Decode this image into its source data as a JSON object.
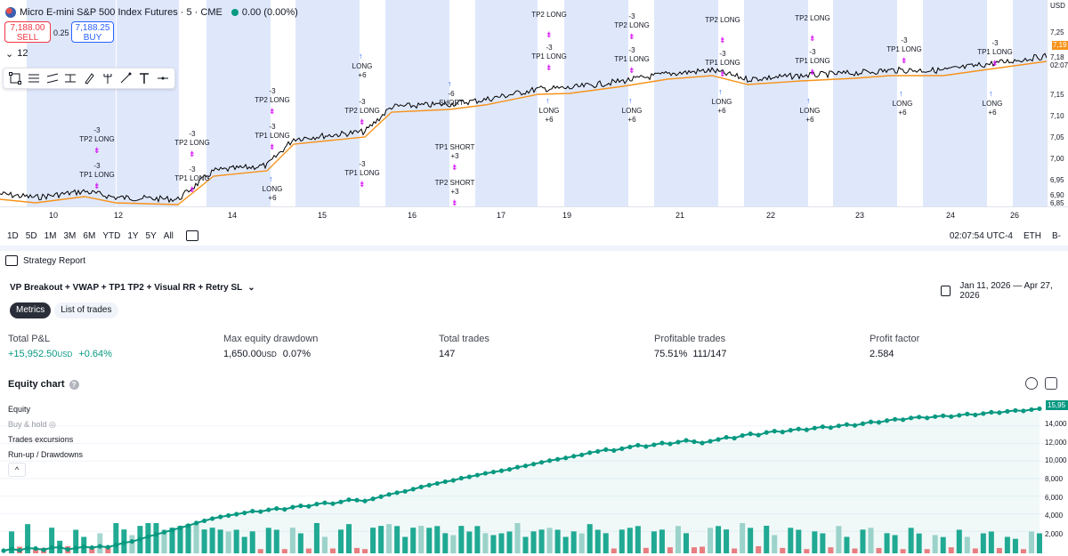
{
  "chart": {
    "symbol_title": "Micro E-mini S&P 500 Index Futures · 5 · CME",
    "change": "0.00 (0.00%)",
    "sell_price": "7,188.00",
    "sell_label": "SELL",
    "spread": "0.25",
    "buy_price": "7,188.25",
    "buy_label": "BUY",
    "interval_value": "12",
    "y_axis_unit": "USD",
    "y_ticks": [
      "7,25",
      "7,19",
      "7,18",
      "02:07",
      "7,15",
      "7,10",
      "7,05",
      "7,00",
      "6,95",
      "6,90",
      "6,85"
    ],
    "current_price_tag": "7,19",
    "x_ticks": [
      "10",
      "12",
      "14",
      "15",
      "16",
      "17",
      "19",
      "21",
      "22",
      "23",
      "24",
      "26"
    ],
    "colors": {
      "session_band": "#dfe8fb",
      "price_line": "#000000",
      "vwap_line": "#f7931a",
      "accent": "#2962ff",
      "tp_marker": "#d500f9"
    },
    "trade_labels": [
      {
        "text": "-3\nTP2 LONG",
        "kind": "tp"
      },
      {
        "text": "-3\nTP1 LONG",
        "kind": "tp"
      },
      {
        "text": "-3\nTP2 LONG",
        "kind": "tp"
      },
      {
        "text": "-3\nTP1 LONG",
        "kind": "tp"
      },
      {
        "text": "LONG\n+6",
        "kind": "entry"
      },
      {
        "text": "-3\nTP2 LONG",
        "kind": "tp"
      },
      {
        "text": "-3\nTP1 LONG",
        "kind": "tp"
      },
      {
        "text": "LONG\n+6",
        "kind": "entry"
      },
      {
        "text": "-3\nTP2 LONG",
        "kind": "tp"
      },
      {
        "text": "-3\nTP1 LONG",
        "kind": "tp"
      },
      {
        "text": "LONG\n+6",
        "kind": "entry"
      },
      {
        "text": "-6\nSHORT",
        "kind": "entry"
      },
      {
        "text": "TP1 SHORT\n+3",
        "kind": "tp"
      },
      {
        "text": "TP2 SHORT\n+3",
        "kind": "tp"
      },
      {
        "text": "TP2 LONG",
        "kind": "tp"
      },
      {
        "text": "-3\nTP1 LONG",
        "kind": "tp"
      },
      {
        "text": "LONG\n+6",
        "kind": "entry"
      },
      {
        "text": "-3\nTP2 LONG",
        "kind": "tp"
      },
      {
        "text": "-3\nTP1 LONG",
        "kind": "tp"
      },
      {
        "text": "LONG\n+6",
        "kind": "entry"
      },
      {
        "text": "TP2 LONG",
        "kind": "tp"
      },
      {
        "text": "-3\nTP1 LONG",
        "kind": "tp"
      },
      {
        "text": "LONG\n+6",
        "kind": "entry"
      },
      {
        "text": "TP2 LONG",
        "kind": "tp"
      },
      {
        "text": "-3\nTP1 LONG",
        "kind": "tp"
      },
      {
        "text": "LONG\n+6",
        "kind": "entry"
      },
      {
        "text": "-3\nTP1 LONG",
        "kind": "tp"
      },
      {
        "text": "LONG\n+6",
        "kind": "entry"
      },
      {
        "text": "-3\nTP1 LONG",
        "kind": "tp"
      },
      {
        "text": "LONG\n+6",
        "kind": "entry"
      }
    ]
  },
  "range_bar": {
    "buttons": [
      "1D",
      "5D",
      "1M",
      "3M",
      "6M",
      "YTD",
      "1Y",
      "5Y",
      "All"
    ],
    "time": "02:07:54 UTC-4",
    "session": "ETH",
    "extra": "B-"
  },
  "report": {
    "header": "Strategy Report",
    "strategy_name": "VP Breakout + VWAP + TP1 TP2 + Visual RR + Retry SL",
    "date_range": "Jan 11, 2026 — Apr 27, 2026",
    "tabs": [
      "Metrics",
      "List of trades"
    ],
    "metrics": [
      {
        "label": "Total P&L",
        "value": "+15,952.50",
        "unit": "USD",
        "extra": "+0.64%"
      },
      {
        "label": "Max equity drawdown",
        "value": "1,650.00",
        "unit": "USD",
        "extra": "0.07%"
      },
      {
        "label": "Total trades",
        "value": "147",
        "unit": "",
        "extra": ""
      },
      {
        "label": "Profitable trades",
        "value": "75.51%",
        "unit": "",
        "extra": "111/147"
      },
      {
        "label": "Profit factor",
        "value": "2.584",
        "unit": "",
        "extra": ""
      }
    ]
  },
  "equity": {
    "title": "Equity chart",
    "help": "?",
    "legend": [
      "Equity",
      "Buy & hold",
      "Trades excursions",
      "Run-up / Drawdowns"
    ],
    "collapse": "^",
    "y_ticks": [
      "15,95",
      "14,000",
      "12,000",
      "10,000",
      "8,000",
      "6,000",
      "4,000",
      "2,000"
    ],
    "current_tag": "15,95",
    "colors": {
      "equity": "#089981",
      "bar_up": "#22ab94",
      "bar_up_light": "#a5d6cf",
      "bar_down": "#f77c80"
    }
  },
  "chart_data": {
    "type": "line",
    "title": "Equity chart",
    "xlabel": "",
    "ylabel": "",
    "ylim": [
      -500,
      16500
    ],
    "grid": true,
    "legend": "top-left",
    "series": [
      {
        "name": "Equity",
        "values": [
          -200,
          0,
          -150,
          100,
          50,
          -100,
          150,
          200,
          -50,
          100,
          250,
          150,
          300,
          200,
          450,
          700,
          850,
          1100,
          1400,
          1650,
          1900,
          2150,
          2400,
          2650,
          2950,
          3200,
          3450,
          3650,
          3800,
          3950,
          4100,
          4300,
          4250,
          4450,
          4600,
          4500,
          4750,
          4900,
          4850,
          5100,
          5250,
          5150,
          5350,
          5600,
          5550,
          5450,
          5700,
          5950,
          6200,
          6400,
          6550,
          6800,
          7050,
          7250,
          7450,
          7650,
          7800,
          8050,
          8200,
          8400,
          8600,
          8750,
          8900,
          9050,
          9300,
          9450,
          9650,
          9850,
          10050,
          10200,
          10350,
          10550,
          10700,
          10950,
          11100,
          11300,
          11200,
          11400,
          11600,
          11800,
          11650,
          11850,
          12050,
          11950,
          12150,
          12350,
          12200,
          12050,
          12250,
          12450,
          12700,
          12600,
          12900,
          13100,
          12950,
          13250,
          13400,
          13300,
          13500,
          13650,
          13550,
          13750,
          13900,
          13800,
          14000,
          14150,
          14050,
          14250,
          14450,
          14400,
          14600,
          14750,
          14700,
          14900,
          15000,
          14900,
          15050,
          15150,
          15050,
          15200,
          15350,
          15250,
          15400,
          15550,
          15500,
          15650,
          15750,
          15700,
          15850,
          15952
        ]
      }
    ]
  }
}
